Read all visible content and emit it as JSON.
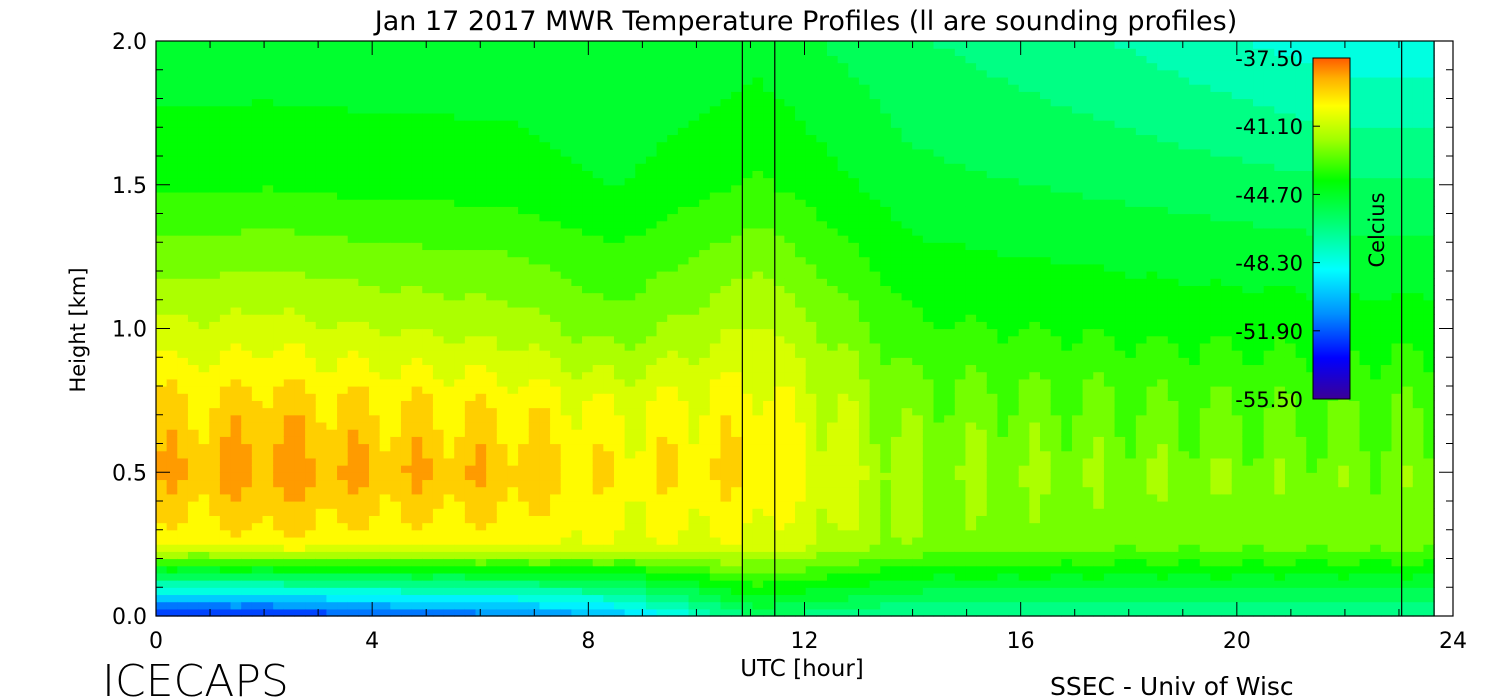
{
  "chart_data": {
    "type": "heatmap",
    "title": "Jan 17 2017 MWR Temperature Profiles (ll are sounding profiles)",
    "xlabel": "UTC [hour]",
    "ylabel": "Height [km]",
    "xlim": [
      0,
      24
    ],
    "ylim": [
      0,
      2.0
    ],
    "xticks": [
      "0",
      "4",
      "8",
      "12",
      "16",
      "20",
      "24"
    ],
    "yticks": [
      "0.0",
      "0.5",
      "1.0",
      "1.5",
      "2.0"
    ],
    "colorbar": {
      "label": "Celcius",
      "range": [
        -55.5,
        -37.5
      ],
      "ticks": [
        "-37.50",
        "-41.10",
        "-44.70",
        "-48.30",
        "-51.90",
        "-55.50"
      ]
    },
    "sounding_lines_hour": [
      10.85,
      11.45,
      23.05
    ],
    "data_end_hour": 23.65,
    "sample_columns": [
      {
        "hour": 1.0,
        "height_km": [
          0.0,
          0.25,
          0.5,
          0.75,
          1.0,
          1.5,
          2.0
        ],
        "temp_c": [
          -53.0,
          -40.0,
          -38.8,
          -39.5,
          -41.0,
          -43.8,
          -45.0
        ]
      },
      {
        "hour": 2.0,
        "height_km": [
          0.0,
          0.25,
          0.5,
          0.75,
          1.0,
          1.5,
          2.0
        ],
        "temp_c": [
          -53.0,
          -39.8,
          -38.3,
          -39.2,
          -40.8,
          -43.7,
          -45.0
        ]
      },
      {
        "hour": 4.0,
        "height_km": [
          0.0,
          0.25,
          0.5,
          0.75,
          1.0,
          1.5,
          2.0
        ],
        "temp_c": [
          -52.0,
          -40.0,
          -38.8,
          -39.6,
          -41.2,
          -43.9,
          -45.0
        ]
      },
      {
        "hour": 6.5,
        "height_km": [
          0.0,
          0.25,
          0.5,
          0.75,
          1.0,
          1.5,
          2.0
        ],
        "temp_c": [
          -51.5,
          -40.0,
          -38.9,
          -39.8,
          -41.5,
          -44.0,
          -45.0
        ]
      },
      {
        "hour": 8.5,
        "height_km": [
          0.0,
          0.25,
          0.5,
          0.75,
          1.0,
          1.5,
          2.0
        ],
        "temp_c": [
          -50.0,
          -40.5,
          -39.8,
          -40.5,
          -42.5,
          -44.5,
          -45.3
        ]
      },
      {
        "hour": 11.15,
        "height_km": [
          0.0,
          0.25,
          0.5,
          0.75,
          1.0,
          1.5,
          2.0
        ],
        "temp_c": [
          -46.0,
          -40.5,
          -39.5,
          -40.0,
          -41.0,
          -43.5,
          -44.8
        ]
      },
      {
        "hour": 14.0,
        "height_km": [
          0.0,
          0.25,
          0.5,
          0.75,
          1.0,
          1.5,
          2.0
        ],
        "temp_c": [
          -47.0,
          -42.2,
          -42.0,
          -42.5,
          -43.5,
          -45.0,
          -46.0
        ]
      },
      {
        "hour": 18.0,
        "height_km": [
          0.0,
          0.25,
          0.5,
          0.75,
          1.0,
          1.5,
          2.0
        ],
        "temp_c": [
          -47.0,
          -42.5,
          -42.2,
          -42.8,
          -43.8,
          -45.5,
          -47.0
        ]
      },
      {
        "hour": 22.0,
        "height_km": [
          0.0,
          0.25,
          0.5,
          0.75,
          1.0,
          1.5,
          2.0
        ],
        "temp_c": [
          -47.0,
          -42.5,
          -42.4,
          -43.0,
          -44.0,
          -46.0,
          -48.3
        ]
      }
    ]
  },
  "footer": {
    "left_logo": "ICECAPS",
    "right_credit": "SSEC - Univ of Wisc"
  }
}
